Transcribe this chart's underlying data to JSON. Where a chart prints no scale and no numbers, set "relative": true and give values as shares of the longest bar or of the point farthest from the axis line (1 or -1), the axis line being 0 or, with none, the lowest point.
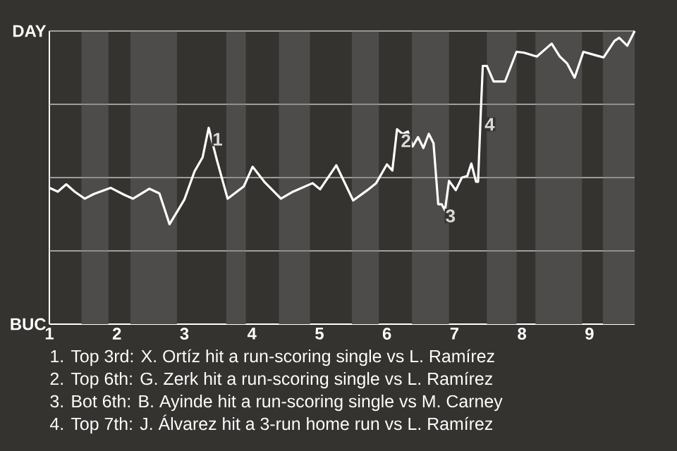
{
  "chart_data": {
    "type": "line",
    "x": [
      1,
      1.125,
      1.25,
      1.375,
      1.525,
      1.66,
      1.91,
      2.11,
      2.24,
      2.48,
      2.63,
      2.78,
      3,
      3.15,
      3.27,
      3.36,
      3.48,
      3.64,
      3.88,
      4.01,
      4.19,
      4.43,
      4.61,
      4.9,
      5.01,
      5.25,
      5.5,
      5.71,
      5.84,
      6,
      6.08,
      6.15,
      6.23,
      6.31,
      6.38,
      6.46,
      6.54,
      6.62,
      6.69,
      6.76,
      6.81,
      6.86,
      6.92,
      7.02,
      7.11,
      7.19,
      7.25,
      7.32,
      7.35,
      7.39,
      7.42,
      7.48,
      7.58,
      7.75,
      7.92,
      8.03,
      8.22,
      8.44,
      8.56,
      8.67,
      8.78,
      8.91,
      9.08,
      9.21,
      9.37,
      9.44,
      9.56,
      9.67
    ],
    "series": [
      {
        "color": "#ffffff",
        "values": [
          0.465,
          0.452,
          0.477,
          0.452,
          0.428,
          0.444,
          0.465,
          0.441,
          0.428,
          0.462,
          0.446,
          0.341,
          0.425,
          0.521,
          0.569,
          0.67,
          0.561,
          0.428,
          0.47,
          0.537,
          0.484,
          0.428,
          0.452,
          0.481,
          0.46,
          0.542,
          0.422,
          0.457,
          0.481,
          0.545,
          0.524,
          0.665,
          0.649,
          0.657,
          0.606,
          0.638,
          0.601,
          0.649,
          0.617,
          0.409,
          0.409,
          0.388,
          0.489,
          0.457,
          0.5,
          0.505,
          0.548,
          0.486,
          0.486,
          0.721,
          0.881,
          0.881,
          0.828,
          0.828,
          0.929,
          0.926,
          0.913,
          0.957,
          0.913,
          0.889,
          0.841,
          0.929,
          0.918,
          0.91,
          0.966,
          0.977,
          0.95,
          1.0
        ]
      }
    ],
    "relative": true,
    "xlim": [
      1,
      9.67
    ],
    "xticks": [
      1,
      2,
      3,
      4,
      5,
      6,
      7,
      8,
      9
    ],
    "grid": "y",
    "marker": "none",
    "line_style": "solid",
    "bands": [
      {
        "axis": "x",
        "from": 1.475,
        "to": 1.875,
        "color": "#4e4c4a"
      },
      {
        "axis": "x",
        "from": 2.2,
        "to": 2.89,
        "color": "#4e4c4a"
      },
      {
        "axis": "x",
        "from": 3.62,
        "to": 3.91,
        "color": "#4e4c4a"
      },
      {
        "axis": "x",
        "from": 4.4,
        "to": 4.86,
        "color": "#4e4c4a"
      },
      {
        "axis": "x",
        "from": 5.48,
        "to": 5.88,
        "color": "#4e4c4a"
      },
      {
        "axis": "x",
        "from": 6.37,
        "to": 6.92,
        "color": "#4e4c4a"
      },
      {
        "axis": "x",
        "from": 7.48,
        "to": 7.92,
        "color": "#4e4c4a"
      },
      {
        "axis": "x",
        "from": 8.2,
        "to": 8.89,
        "color": "#4e4c4a"
      },
      {
        "axis": "x",
        "from": 9.2,
        "to": 9.67,
        "color": "#4e4c4a"
      }
    ],
    "annotations": [
      "DAY",
      "BUC",
      {
        "text": "1",
        "x": 3.36,
        "y": 0.67
      },
      {
        "text": "2",
        "x": 6.15,
        "y": 0.665
      },
      {
        "text": "3",
        "x": 6.81,
        "y": 0.409
      },
      {
        "text": "4",
        "x": 7.39,
        "y": 0.721
      },
      "1. Top 3rd: X. Ortíz hit a run-scoring single vs L. Ramírez",
      "2. Top 6th: G. Zerk hit a run-scoring single vs L. Ramírez",
      "3. Bot 6th: B. Ayinde hit a run-scoring single vs M. Carney",
      "4. Top 7th: J. Álvarez hit a 3-run home run vs L. Ramírez"
    ]
  }
}
